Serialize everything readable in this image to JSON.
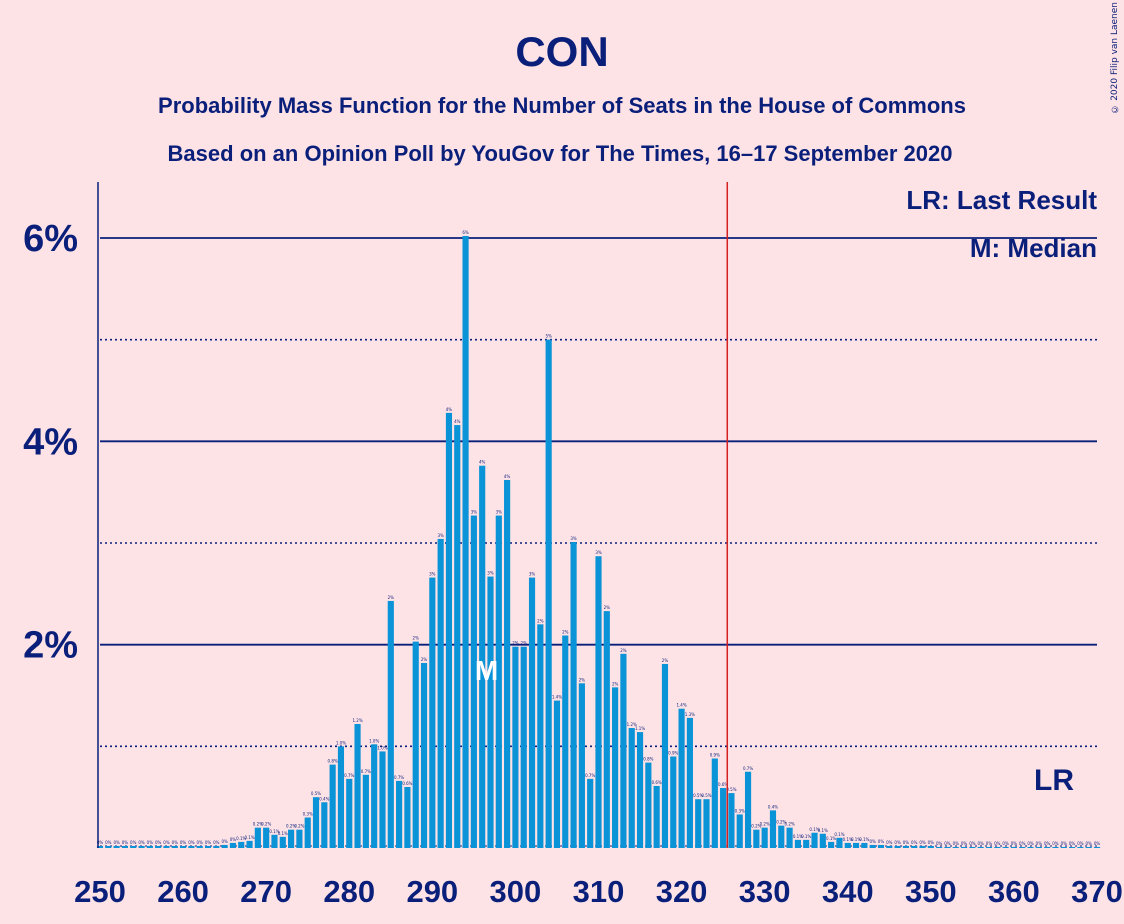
{
  "colors": {
    "background": "#fde2e6",
    "bar": "#0a93d6",
    "text": "#0a1f7a",
    "grid": "#0a1f7a",
    "last_result_line": "#d42020",
    "median_label": "#ffffff"
  },
  "credit": "© 2020 Filip van Laenen",
  "chart_data": {
    "type": "bar",
    "title": "CON",
    "subtitle": "Probability Mass Function for the Number of Seats in the House of Commons",
    "subtitle2": "Based on an Opinion Poll by YouGov for The Times, 16–17 September 2020",
    "xlabel": "",
    "ylabel": "",
    "xlim": [
      250,
      370
    ],
    "ylim": [
      0,
      6.55
    ],
    "x_ticks": [
      "250",
      "260",
      "270",
      "280",
      "290",
      "300",
      "310",
      "320",
      "330",
      "340",
      "350",
      "360",
      "370"
    ],
    "y_ticks": [
      "2%",
      "4%",
      "6%"
    ],
    "y_tick_values": [
      2,
      4,
      6
    ],
    "grid": "solid lines at 2%, 4%, 6%; dotted lines at 1%, 3%, 5%",
    "legend": {
      "lr": "LR: Last Result",
      "m": "M: Median",
      "placement": "top-right"
    },
    "last_result_seat": 326,
    "last_result_label": "LR",
    "median_seat": 297,
    "median_label": "M",
    "seats_start": 250,
    "values": [
      0.02,
      0.02,
      0.02,
      0.02,
      0.02,
      0.02,
      0.02,
      0.02,
      0.02,
      0.02,
      0.02,
      0.02,
      0.02,
      0.02,
      0.02,
      0.03,
      0.05,
      0.06,
      0.07,
      0.2,
      0.2,
      0.13,
      0.11,
      0.18,
      0.18,
      0.3,
      0.5,
      0.45,
      0.82,
      1.0,
      0.68,
      1.22,
      0.72,
      1.02,
      0.95,
      2.43,
      0.66,
      0.6,
      2.03,
      1.82,
      2.66,
      3.04,
      4.28,
      4.16,
      6.02,
      3.27,
      3.76,
      2.67,
      3.27,
      3.62,
      1.98,
      1.98,
      2.66,
      2.2,
      5.0,
      1.45,
      2.09,
      3.01,
      1.62,
      0.68,
      2.87,
      2.33,
      1.58,
      1.91,
      1.18,
      1.14,
      0.84,
      0.61,
      1.81,
      0.9,
      1.37,
      1.28,
      0.48,
      0.48,
      0.88,
      0.59,
      0.54,
      0.33,
      0.75,
      0.18,
      0.2,
      0.37,
      0.22,
      0.2,
      0.08,
      0.08,
      0.15,
      0.14,
      0.06,
      0.1,
      0.05,
      0.05,
      0.05,
      0.03,
      0.03,
      0.02,
      0.02,
      0.02,
      0.02,
      0.02,
      0.02,
      0.01,
      0.01,
      0.01,
      0.01,
      0.01,
      0.01,
      0.01,
      0.01,
      0.01,
      0.01,
      0.01,
      0.01,
      0.01,
      0.01,
      0.01,
      0.01,
      0.01,
      0.01,
      0.01,
      0.01
    ],
    "bar_labels": [
      "0%",
      "0%",
      "0%",
      "0%",
      "0%",
      "0%",
      "0%",
      "0%",
      "0%",
      "0%",
      "0%",
      "0%",
      "0%",
      "0%",
      "0%",
      "0%",
      "0%",
      "0.1%",
      "0.1%",
      "0.2%",
      "0.2%",
      "0.1%",
      "0.1%",
      "0.2%",
      "0.2%",
      "0.3%",
      "0.5%",
      "0.4%",
      "0.8%",
      "1.0%",
      "0.7%",
      "1.2%",
      "0.7%",
      "1.0%",
      "1.0%",
      "2%",
      "0.7%",
      "0.6%",
      "2%",
      "2%",
      "3%",
      "3%",
      "4%",
      "4%",
      "6%",
      "3%",
      "4%",
      "3%",
      "3%",
      "4%",
      "2%",
      "2%",
      "3%",
      "2%",
      "5%",
      "1.4%",
      "2%",
      "3%",
      "2%",
      "0.7%",
      "3%",
      "2%",
      "2%",
      "2%",
      "1.2%",
      "1.1%",
      "0.8%",
      "0.6%",
      "2%",
      "0.9%",
      "1.4%",
      "1.3%",
      "0.5%",
      "0.5%",
      "0.9%",
      "0.6%",
      "0.5%",
      "0.3%",
      "0.7%",
      "0.2%",
      "0.2%",
      "0.4%",
      "0.2%",
      "0.2%",
      "0.1%",
      "0.1%",
      "0.1%",
      "0.1%",
      "0.1%",
      "0.1%",
      "0.1%",
      "0.1%",
      "0.1%",
      "0%",
      "0%",
      "0%",
      "0%",
      "0%",
      "0%",
      "0%",
      "0%",
      "0%",
      "0%",
      "0%",
      "0%",
      "0%",
      "0%",
      "0%",
      "0%",
      "0%",
      "0%",
      "0%",
      "0%",
      "0%",
      "0%",
      "0%",
      "0%",
      "0%",
      "0%",
      "0%",
      "0%"
    ]
  }
}
